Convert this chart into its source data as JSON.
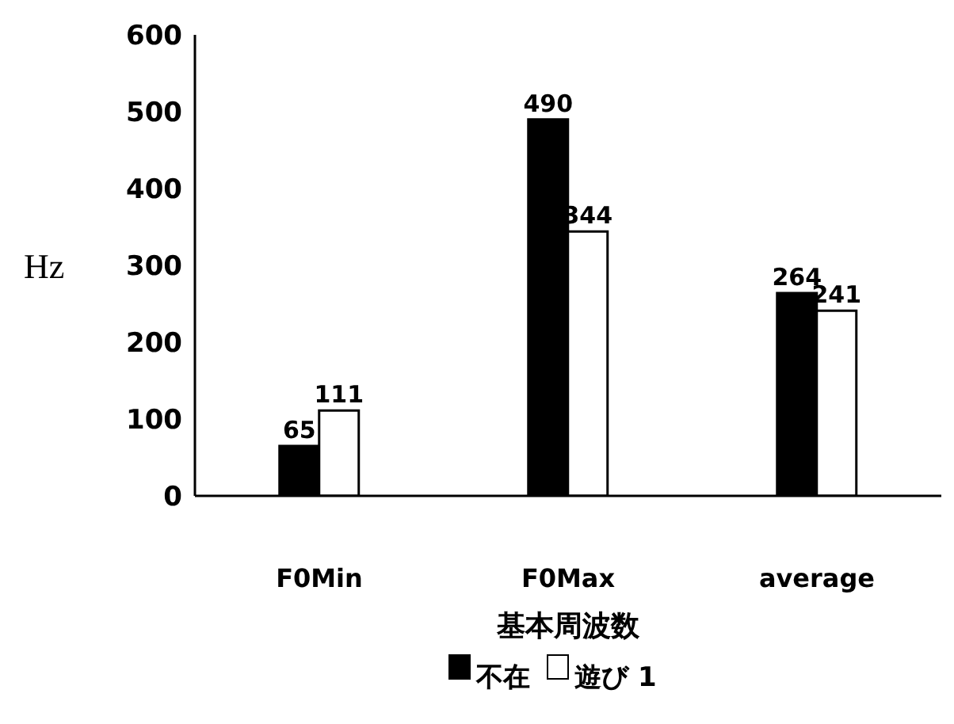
{
  "chart_data": {
    "type": "bar",
    "xlabel": "基本周波数",
    "ylabel": "Hz",
    "categories": [
      "F0Min",
      "F0Max",
      "average"
    ],
    "series": [
      {
        "name": "不在",
        "color": "#000000",
        "values": [
          65,
          490,
          264
        ]
      },
      {
        "name": "遊び 1",
        "color": "#ffffff",
        "values": [
          111,
          344,
          241
        ]
      }
    ],
    "ylim": [
      0,
      600
    ],
    "yticks": [
      0,
      100,
      200,
      300,
      400,
      500,
      600
    ],
    "data_labels": true,
    "grid": false,
    "legend": "bottom"
  }
}
